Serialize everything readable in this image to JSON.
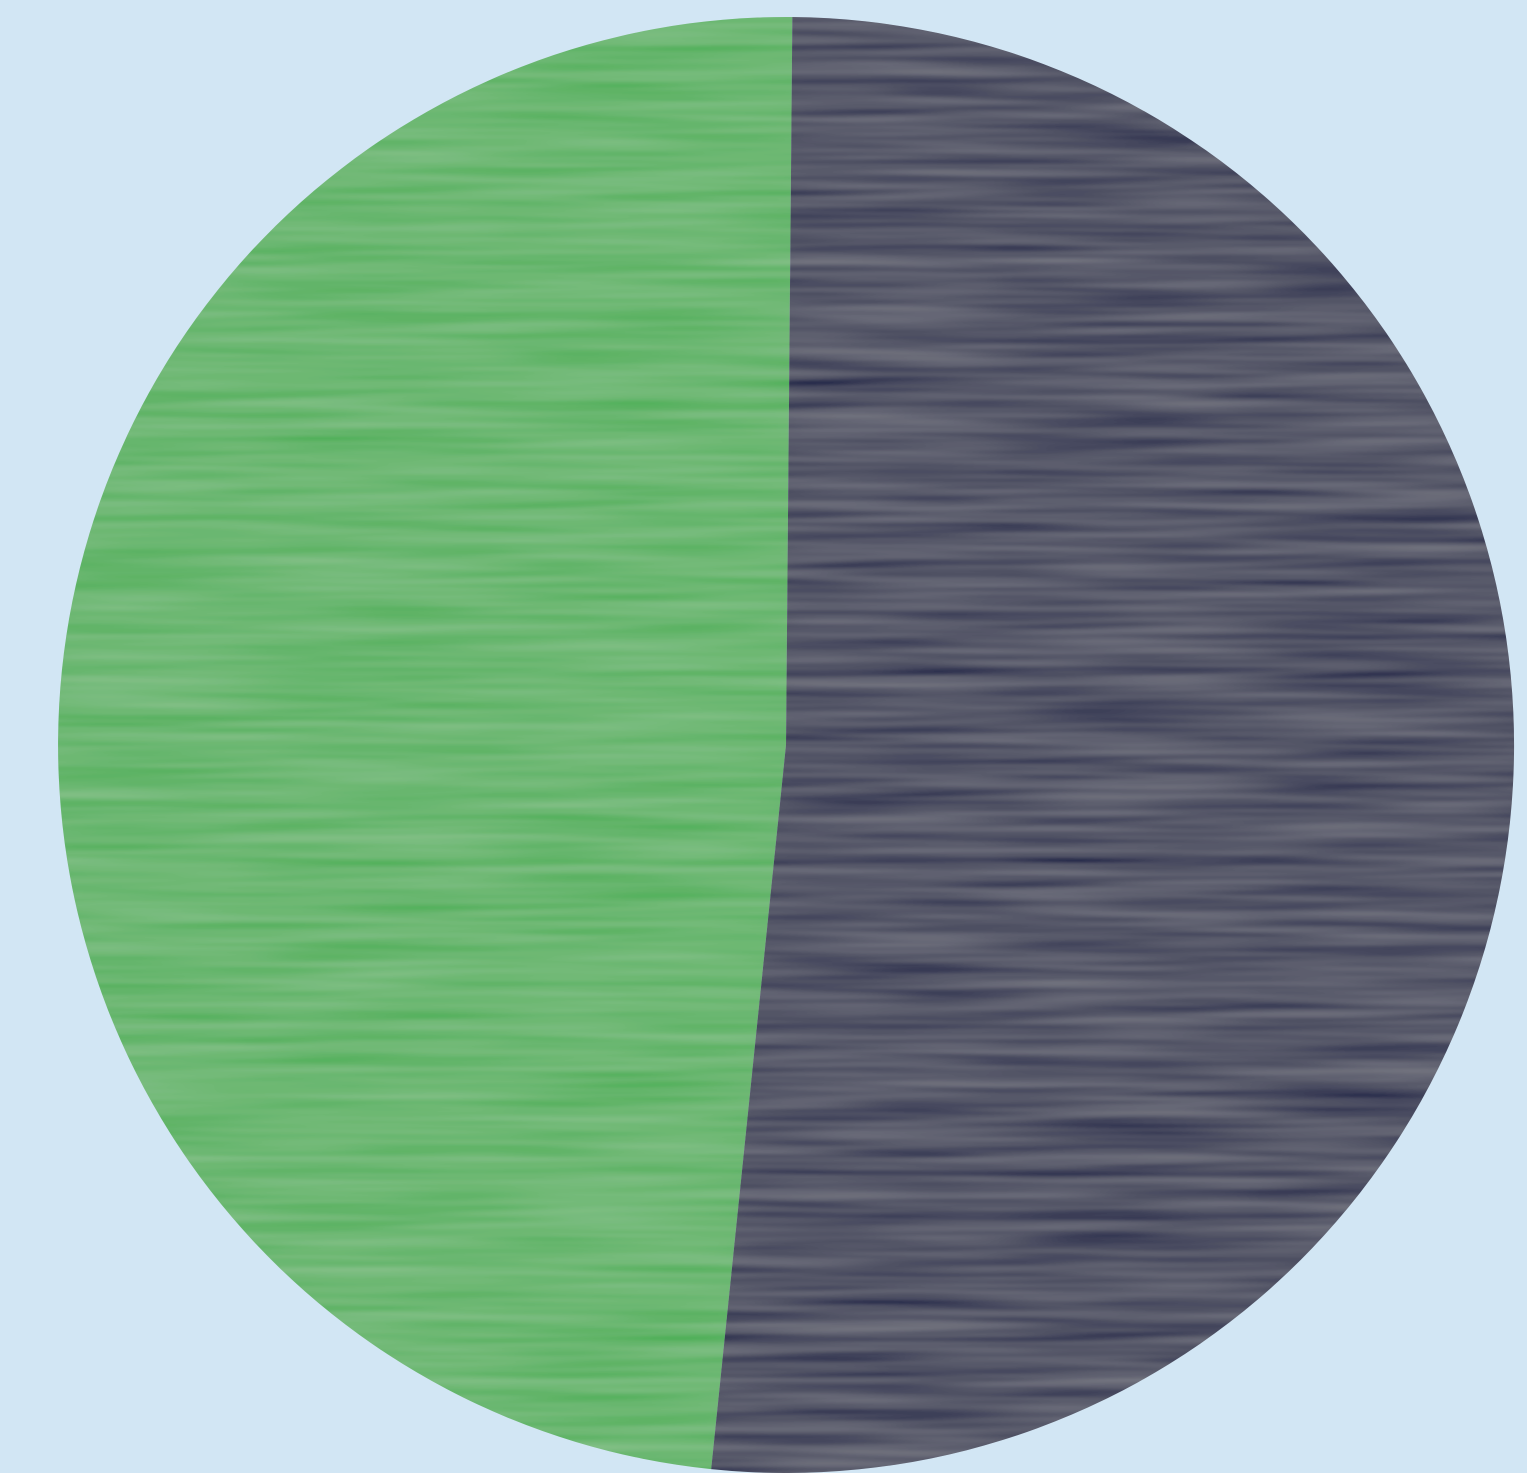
{
  "background": {
    "color": "#d2e6f4"
  },
  "chart_data": {
    "type": "pie",
    "title": "",
    "labels": [],
    "slices": [
      {
        "value": 48.5,
        "color": "#4caf55"
      },
      {
        "value": 51.5,
        "color": "#141c44"
      }
    ]
  }
}
